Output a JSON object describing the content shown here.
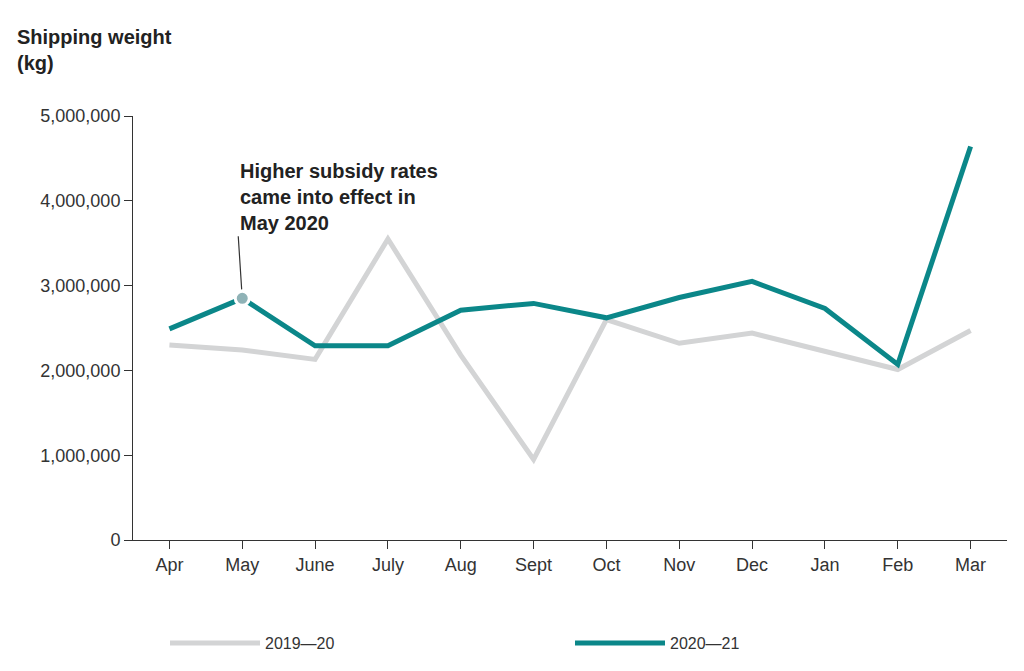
{
  "chart_data": {
    "type": "line",
    "ylabel": "Shipping weight\n(kg)",
    "categories": [
      "Apr",
      "May",
      "June",
      "July",
      "Aug",
      "Sept",
      "Oct",
      "Nov",
      "Dec",
      "Jan",
      "Feb",
      "Mar"
    ],
    "series": [
      {
        "name": "2019—20",
        "color": "#d3d4d5",
        "values": [
          2300000,
          2240000,
          2130000,
          3550000,
          2180000,
          950000,
          2600000,
          2320000,
          2440000,
          2220000,
          2010000,
          2470000
        ]
      },
      {
        "name": "2020—21",
        "color": "#0b8789",
        "values": [
          2490000,
          2850000,
          2290000,
          2290000,
          2710000,
          2790000,
          2620000,
          2860000,
          3050000,
          2730000,
          2070000,
          4640000
        ]
      }
    ],
    "annotations": [
      {
        "text": "Higher subsidy rates\ncame into effect in\nMay 2020",
        "category": "May",
        "series": "2020—21"
      }
    ],
    "ylim": [
      0,
      5000000
    ],
    "yticks": [
      0,
      {
        "value": 1000000,
        "label": "1,000,000"
      },
      {
        "value": 2000000,
        "label": "2,000,000"
      },
      {
        "value": 3000000,
        "label": "3,000,000"
      },
      {
        "value": 4000000,
        "label": "4,000,000"
      },
      {
        "value": 5000000,
        "label": "5,000,000"
      }
    ],
    "grid": false,
    "legend": "bottom"
  }
}
